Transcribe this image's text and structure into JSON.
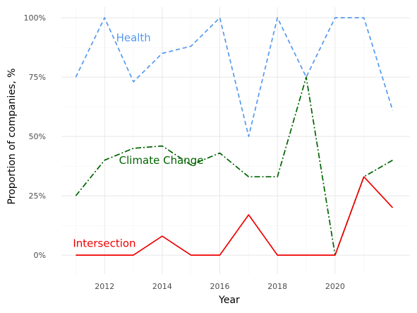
{
  "chart_data": {
    "type": "line",
    "xlabel": "Year",
    "ylabel": "Proportion of companies, %",
    "x": [
      2011,
      2012,
      2013,
      2014,
      2015,
      2016,
      2017,
      2018,
      2019,
      2020,
      2021,
      2022
    ],
    "xticks": [
      "2012",
      "2014",
      "2016",
      "2018",
      "2020"
    ],
    "yticks": [
      "0%",
      "25%",
      "50%",
      "75%",
      "100%"
    ],
    "xlim": [
      2010.5,
      2022.6
    ],
    "ylim": [
      -0.08,
      1.045
    ],
    "grid": true,
    "series": [
      {
        "name": "Health",
        "color": "#5599ee",
        "dash": "dashed",
        "values": [
          0.75,
          1.0,
          0.73,
          0.85,
          0.88,
          1.0,
          0.5,
          1.0,
          0.75,
          1.0,
          1.0,
          0.61
        ]
      },
      {
        "name": "Climate Change",
        "color": "#006400",
        "dash": "dashdot",
        "values": [
          0.25,
          0.4,
          0.45,
          0.46,
          0.38,
          0.43,
          0.33,
          0.33,
          0.75,
          0.0,
          0.33,
          0.4
        ]
      },
      {
        "name": "Intersection",
        "color": "#ee0000",
        "dash": "solid",
        "values": [
          0.0,
          0.0,
          0.0,
          0.08,
          0.0,
          0.0,
          0.17,
          0.0,
          0.0,
          0.0,
          0.33,
          0.2
        ]
      }
    ]
  }
}
